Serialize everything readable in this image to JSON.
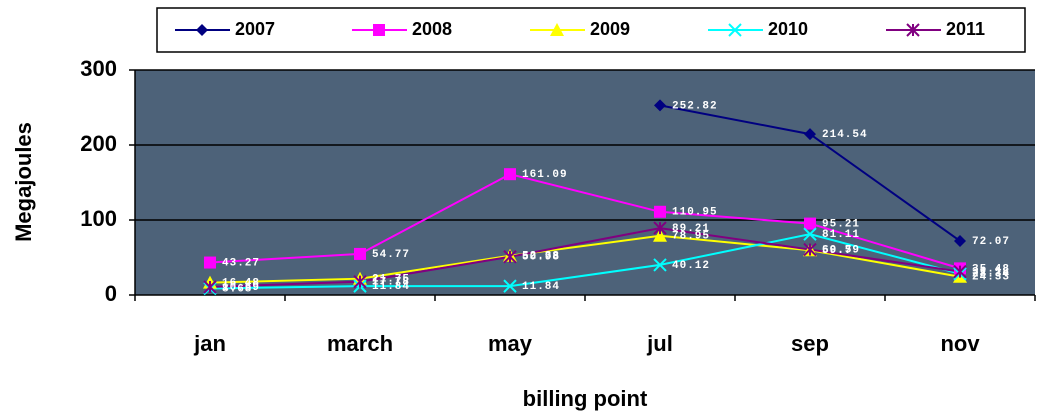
{
  "chart_data": {
    "type": "line",
    "categories": [
      "jan",
      "march",
      "may",
      "jul",
      "sep",
      "nov"
    ],
    "series": [
      {
        "name": "2007",
        "color": "#000080",
        "marker": "diamond",
        "values": [
          null,
          null,
          null,
          252.82,
          214.54,
          72.07
        ]
      },
      {
        "name": "2008",
        "color": "#ff00ff",
        "marker": "square",
        "values": [
          43.27,
          54.77,
          161.09,
          110.95,
          95.21,
          35.48
        ]
      },
      {
        "name": "2009",
        "color": "#ffff00",
        "marker": "triangle",
        "values": [
          16.48,
          21.75,
          52.38,
          78.95,
          59.7,
          24.33
        ]
      },
      {
        "name": "2010",
        "color": "#00ffff",
        "marker": "x",
        "values": [
          8.68,
          11.84,
          11.84,
          40.12,
          81.11,
          28.34
        ]
      },
      {
        "name": "2011",
        "color": "#800080",
        "marker": "star",
        "values": [
          10.69,
          17.78,
          50.98,
          89.21,
          60.59,
          31.18
        ]
      }
    ],
    "xlabel": "billing point",
    "ylabel": "Megajoules",
    "ylim": [
      0,
      300
    ],
    "yticks": [
      0,
      100,
      200,
      300
    ],
    "grid": true,
    "legend": "top"
  }
}
